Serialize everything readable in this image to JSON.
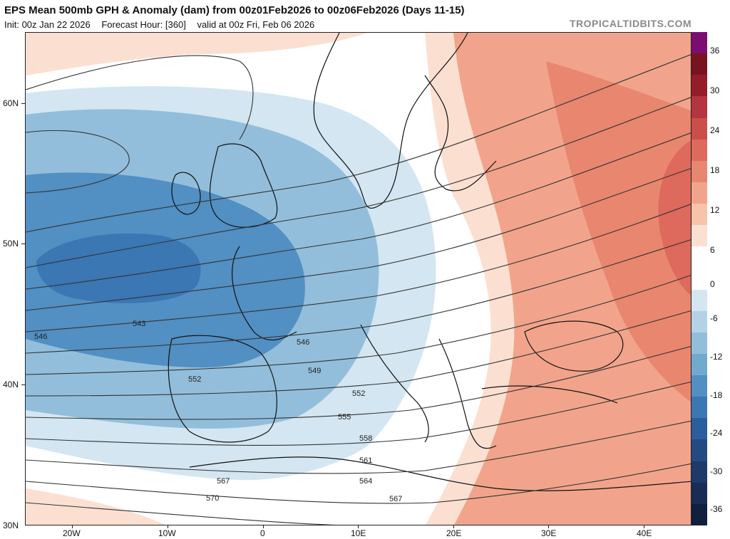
{
  "header": {
    "title": "EPS Mean 500mb GPH & Anomaly (dam) from 00z01Feb2026 to 00z06Feb2026 (Days 11-15)",
    "init": "Init: 00z Jan 22 2026",
    "forecast_hour": "Forecast Hour: [360]",
    "valid": "valid at 00z Fri, Feb 06 2026",
    "brand": "TROPICALTIDBITS.COM"
  },
  "axes": {
    "lat_labels": [
      "60N",
      "50N",
      "40N",
      "30N"
    ],
    "lon_labels": [
      "20W",
      "10W",
      "0",
      "10E",
      "20E",
      "30E",
      "40E"
    ]
  },
  "colorbar": {
    "labels": [
      "36",
      "30",
      "24",
      "18",
      "12",
      "6",
      "0",
      "-6",
      "-12",
      "-18",
      "-24",
      "-30",
      "-36"
    ],
    "colors": [
      "#7b0d72",
      "#7a1321",
      "#951c2b",
      "#b43440",
      "#cc4e4b",
      "#dd6a5c",
      "#e9866f",
      "#f1a48b",
      "#f7c3ab",
      "#fbe0d2",
      "#ffffff",
      "#ffffff",
      "#d3e6f1",
      "#b3d2e6",
      "#92bedb",
      "#72a9cf",
      "#528fc2",
      "#3a77b3",
      "#2a5e9c",
      "#244a84",
      "#1d3a6b",
      "#182d55",
      "#11203f"
    ]
  },
  "contour_labels": [
    "543",
    "546",
    "546",
    "549",
    "552",
    "552",
    "555",
    "558",
    "561",
    "564",
    "567",
    "567",
    "570"
  ],
  "colors": {
    "ocean_white": "#ffffff",
    "neg_light": "#d3e6f1",
    "neg_mid": "#92bedb",
    "neg_strong": "#528fc2",
    "neg_core": "#3a77b3",
    "pos_light": "#fbe0d2",
    "pos_mid": "#f1a48b",
    "pos_strong": "#e9866f",
    "pos_core": "#dd6a5c",
    "coast": "#111111",
    "contour": "#333333"
  }
}
